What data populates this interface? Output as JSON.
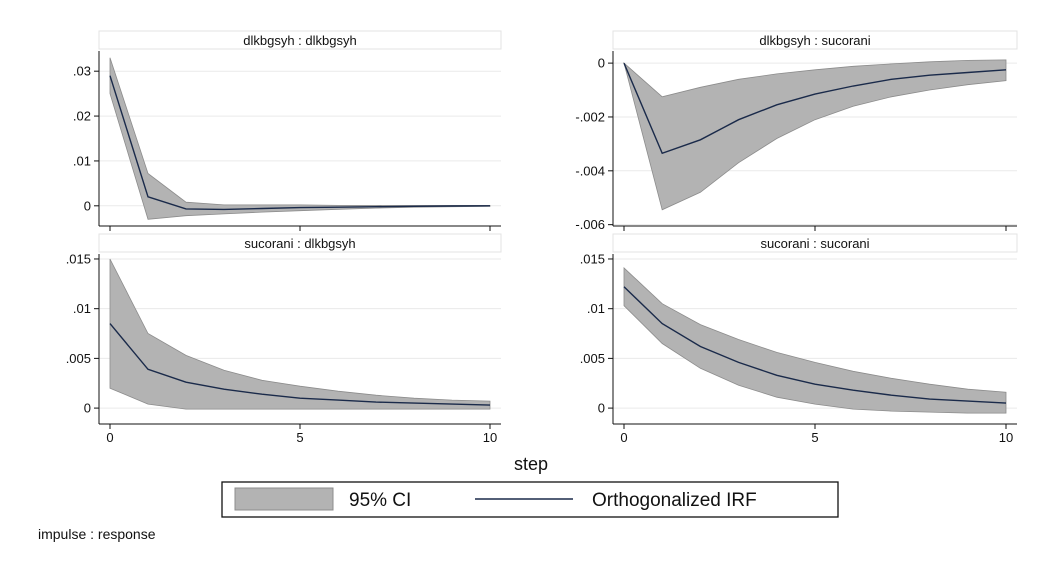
{
  "chart_data": [
    {
      "type": "line",
      "title": "dlkbgsyh : dlkbgsyh",
      "x": [
        0,
        1,
        2,
        3,
        4,
        5,
        6,
        7,
        8,
        9,
        10
      ],
      "xlim": [
        0,
        10
      ],
      "xticks": [
        "0",
        "5",
        "10"
      ],
      "ylim": [
        -0.0045,
        0.0345
      ],
      "yticks": [
        ".03",
        ".02",
        ".01",
        "0"
      ],
      "ytick_values": [
        0.03,
        0.02,
        0.01,
        0
      ],
      "series": [
        {
          "name": "Orthogonalized IRF",
          "values": [
            0.029,
            0.002,
            -0.0007,
            -0.0008,
            -0.0006,
            -0.0004,
            -0.0003,
            -0.0002,
            -0.0001,
            -5e-05,
            0.0
          ]
        },
        {
          "name": "95% CI",
          "lower": [
            0.025,
            -0.003,
            -0.0022,
            -0.0018,
            -0.0014,
            -0.0011,
            -0.0008,
            -0.0005,
            -0.0003,
            -0.0002,
            -0.0001
          ],
          "upper": [
            0.033,
            0.0072,
            0.0008,
            0.0002,
            0.0002,
            0.0002,
            0.0001,
            0.0001,
            0.0001,
            0.0001,
            0.0001
          ]
        }
      ]
    },
    {
      "type": "line",
      "title": "dlkbgsyh : sucorani",
      "x": [
        0,
        1,
        2,
        3,
        4,
        5,
        6,
        7,
        8,
        9,
        10
      ],
      "xlim": [
        0,
        10
      ],
      "xticks": [
        "0",
        "5",
        "10"
      ],
      "ylim": [
        -0.00605,
        0.00045
      ],
      "yticks": [
        "0",
        "-.002",
        "-.004",
        "-.006"
      ],
      "ytick_values": [
        0,
        -0.002,
        -0.004,
        -0.006
      ],
      "series": [
        {
          "name": "Orthogonalized IRF",
          "values": [
            0.0,
            -0.00335,
            -0.00285,
            -0.0021,
            -0.00155,
            -0.00115,
            -0.00085,
            -0.0006,
            -0.00045,
            -0.00035,
            -0.00025
          ]
        },
        {
          "name": "95% CI",
          "lower": [
            0.0,
            -0.00545,
            -0.0048,
            -0.0037,
            -0.0028,
            -0.0021,
            -0.0016,
            -0.00125,
            -0.001,
            -0.0008,
            -0.00065
          ],
          "upper": [
            0.0,
            -0.00125,
            -0.0009,
            -0.0006,
            -0.0004,
            -0.00025,
            -0.00012,
            -3e-05,
            5e-05,
            0.0001,
            0.00012
          ]
        }
      ]
    },
    {
      "type": "line",
      "title": "sucorani : dlkbgsyh",
      "x": [
        0,
        1,
        2,
        3,
        4,
        5,
        6,
        7,
        8,
        9,
        10
      ],
      "xlim": [
        0,
        10
      ],
      "xticks": [
        "0",
        "5",
        "10"
      ],
      "ylim": [
        -0.0016,
        0.0155
      ],
      "yticks": [
        ".015",
        ".01",
        ".005",
        "0"
      ],
      "ytick_values": [
        0.015,
        0.01,
        0.005,
        0
      ],
      "series": [
        {
          "name": "Orthogonalized IRF",
          "values": [
            0.0085,
            0.0039,
            0.0026,
            0.0019,
            0.0014,
            0.001,
            0.0008,
            0.0006,
            0.0005,
            0.0004,
            0.0003
          ]
        },
        {
          "name": "95% CI",
          "lower": [
            0.002,
            0.0004,
            -0.0001,
            -0.0001,
            -0.0001,
            -0.0001,
            -0.0001,
            -0.0001,
            -0.0001,
            -0.0001,
            -0.0001
          ],
          "upper": [
            0.015,
            0.0075,
            0.0053,
            0.0038,
            0.0028,
            0.0022,
            0.0017,
            0.0013,
            0.001,
            0.0008,
            0.0007
          ]
        }
      ]
    },
    {
      "type": "line",
      "title": "sucorani : sucorani",
      "x": [
        0,
        1,
        2,
        3,
        4,
        5,
        6,
        7,
        8,
        9,
        10
      ],
      "xlim": [
        0,
        10
      ],
      "xticks": [
        "0",
        "5",
        "10"
      ],
      "ylim": [
        -0.0016,
        0.0155
      ],
      "yticks": [
        ".015",
        ".01",
        ".005",
        "0"
      ],
      "ytick_values": [
        0.015,
        0.01,
        0.005,
        0
      ],
      "series": [
        {
          "name": "Orthogonalized IRF",
          "values": [
            0.0122,
            0.0085,
            0.0062,
            0.0046,
            0.0033,
            0.0024,
            0.0018,
            0.0013,
            0.0009,
            0.0007,
            0.0005
          ]
        },
        {
          "name": "95% CI",
          "lower": [
            0.0103,
            0.0065,
            0.004,
            0.0023,
            0.0011,
            0.0004,
            -0.0001,
            -0.0003,
            -0.0004,
            -0.0005,
            -0.0005
          ],
          "upper": [
            0.0141,
            0.0105,
            0.0084,
            0.0069,
            0.0056,
            0.0046,
            0.0037,
            0.003,
            0.0024,
            0.0019,
            0.0016
          ]
        }
      ]
    }
  ],
  "xlabel": "step",
  "legend": {
    "position": "bottom",
    "items": [
      {
        "label": "95% CI",
        "type": "band"
      },
      {
        "label": "Orthogonalized IRF",
        "type": "line"
      }
    ]
  },
  "note": "impulse : response",
  "colors": {
    "band_fill": "#b3b3b3",
    "band_stroke": "#8c8c8c",
    "line": "#1a2a4a",
    "grid": "#eaeaea",
    "title_box": "#ffffff",
    "title_border": "#e3e3e3"
  }
}
